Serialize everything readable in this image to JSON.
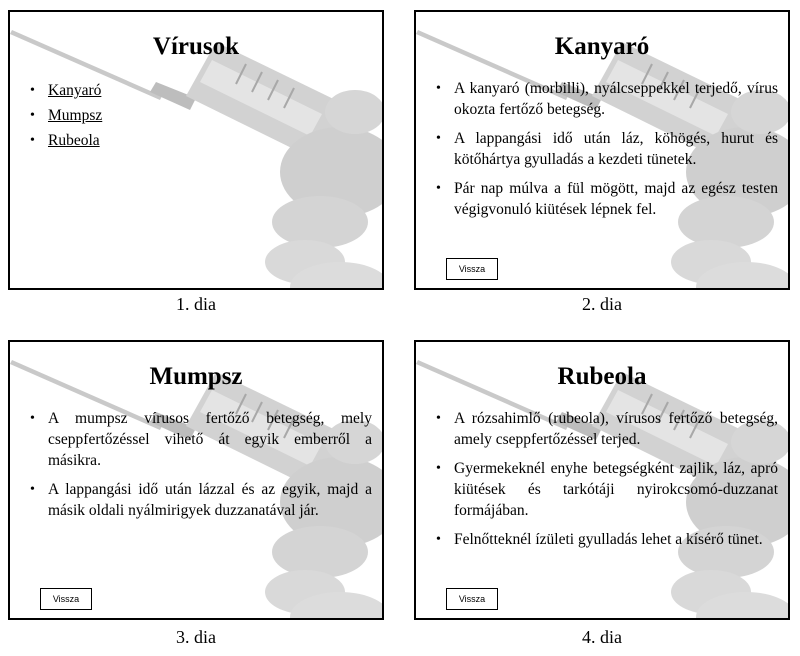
{
  "slides": [
    {
      "title": "Vírusok",
      "bullets": [
        "Kanyaró",
        "Mumpsz",
        "Rubeola"
      ],
      "caption": "1. dia"
    },
    {
      "title": "Kanyaró",
      "bullets": [
        "A kanyaró (morbilli), nyálcseppekkel terjedő, vírus okozta fertőző betegség.",
        "A lappangási idő után láz, köhögés, hurut és kötőhártya gyulladás a kezdeti tünetek.",
        "Pár nap múlva a fül mögött, majd az egész testen végigvonuló kiütések lépnek fel."
      ],
      "button": "Vissza",
      "caption": "2. dia"
    },
    {
      "title": "Mumpsz",
      "bullets": [
        "A mumpsz vírusos fertőző betegség, mely cseppfertőzéssel vihető át egyik emberről a másikra.",
        "A lappangási idő után lázzal és az egyik, majd a másik oldali nyálmirigyek duzzanatával jár."
      ],
      "button": "Vissza",
      "caption": "3. dia"
    },
    {
      "title": "Rubeola",
      "bullets": [
        "A rózsahimlő (rubeola), vírusos fertőző betegség, amely cseppfertőzéssel terjed.",
        "Gyermekeknél enyhe betegségként zajlik, láz, apró kiütések és tarkótáji nyirokcsomó-duzzanat formájában.",
        "Felnőtteknél ízületi gyulladás lehet a kísérő tünet."
      ],
      "button": "Vissza",
      "caption": "4. dia"
    }
  ]
}
